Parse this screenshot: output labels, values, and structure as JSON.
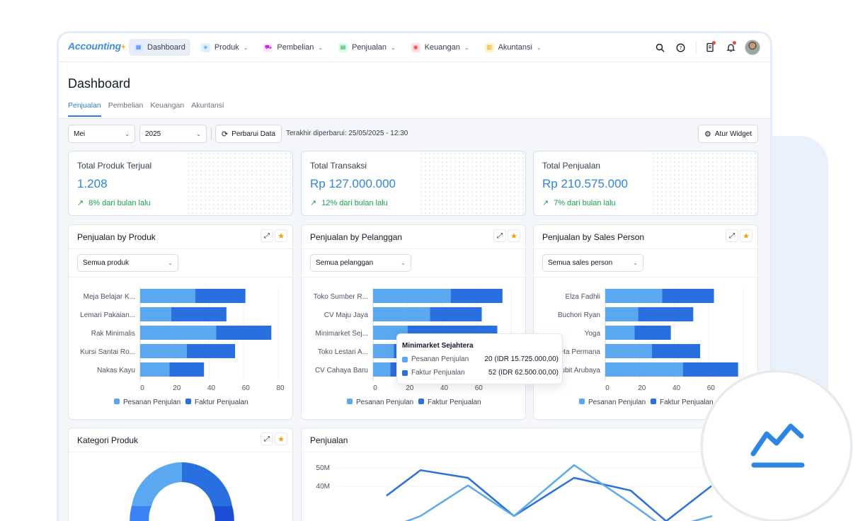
{
  "app": {
    "logo": "Accounting",
    "logo_plus": "+"
  },
  "nav": {
    "items": [
      {
        "label": "Dashboard",
        "icon": "dashboard-icon",
        "color": "#3b82f6",
        "active": true
      },
      {
        "label": "Produk",
        "icon": "box-icon",
        "color": "#60a5fa",
        "active": false
      },
      {
        "label": "Pembelian",
        "icon": "cart-icon",
        "color": "#c026d3",
        "active": false
      },
      {
        "label": "Penjualan",
        "icon": "clipboard-icon",
        "color": "#16a34a",
        "active": false
      },
      {
        "label": "Keuangan",
        "icon": "money-icon",
        "color": "#ef4444",
        "active": false
      },
      {
        "label": "Akuntansi",
        "icon": "ledger-icon",
        "color": "#f59e0b",
        "active": false
      }
    ]
  },
  "header": {
    "title": "Dashboard"
  },
  "tabs": [
    {
      "label": "Penjualan",
      "active": true
    },
    {
      "label": "Pembelian",
      "active": false
    },
    {
      "label": "Keuangan",
      "active": false
    },
    {
      "label": "Akuntansi",
      "active": false
    }
  ],
  "toolbar": {
    "month": "Mei",
    "year": "2025",
    "refresh_label": "Perbarui Data",
    "last_update": "Terakhir diperbarui: 25/05/2025 - 12:30",
    "widget_label": "Atur Widget"
  },
  "kpis": [
    {
      "label": "Total Produk Terjual",
      "value": "1.208",
      "trend": "8% dari bulan lalu"
    },
    {
      "label": "Total Transaksi",
      "value": "Rp 127.000.000",
      "trend": "12% dari bulan lalu"
    },
    {
      "label": "Total Penjualan",
      "value": "Rp 210.575.000",
      "trend": "7% dari bulan lalu"
    }
  ],
  "colors": {
    "pesanan": "#5aa9f0",
    "faktur": "#2a6fe0",
    "accent": "#2f7fd8",
    "trend": "#16a34a"
  },
  "cards": {
    "produk": {
      "title": "Penjualan by Produk",
      "filter": "Semua produk"
    },
    "pelanggan": {
      "title": "Penjualan by Pelanggan",
      "filter": "Semua pelanggan"
    },
    "sales": {
      "title": "Penjualan by Sales Person",
      "filter": "Semua sales person"
    },
    "kategori": {
      "title": "Kategori Produk"
    },
    "penjualan": {
      "title": "Penjualan"
    }
  },
  "tooltip": {
    "title": "Minimarket Sejahtera",
    "rows": [
      {
        "label": "Pesanan Penjulan",
        "value": "20 (IDR 15.725.000,00)"
      },
      {
        "label": "Faktur Penjualan",
        "value": "52 (IDR 62.500.00,00)"
      }
    ]
  },
  "chart_data": [
    {
      "type": "bar",
      "orientation": "horizontal",
      "stacked": true,
      "title": "Penjualan by Produk",
      "categories": [
        "Meja Belajar K...",
        "Lemari Pakaian...",
        "Rak Minimalis",
        "Kursi Santai Ro...",
        "Nakas Kayu"
      ],
      "series": [
        {
          "name": "Pesanan Penjulan",
          "values": [
            32,
            18,
            44,
            27,
            17
          ]
        },
        {
          "name": "Faktur Penjualan",
          "values": [
            29,
            32,
            32,
            28,
            20
          ]
        }
      ],
      "xlim": [
        0,
        80
      ],
      "xticks": [
        "0",
        "20",
        "40",
        "60",
        "80"
      ],
      "legend": "bottom"
    },
    {
      "type": "bar",
      "orientation": "horizontal",
      "stacked": true,
      "title": "Penjualan by Pelanggan",
      "categories": [
        "Toko Sumber R...",
        "CV Maju Jaya",
        "Minimarket Sej...",
        "Toko Lestari A...",
        "CV Cahaya Baru"
      ],
      "series": [
        {
          "name": "Pesanan Penjulan",
          "values": [
            45,
            33,
            20,
            12,
            10
          ]
        },
        {
          "name": "Faktur Penjualan",
          "values": [
            30,
            30,
            52,
            35,
            30
          ]
        }
      ],
      "xlim": [
        0,
        80
      ],
      "xticks": [
        "0",
        "20",
        "40",
        "60"
      ],
      "legend": "bottom"
    },
    {
      "type": "bar",
      "orientation": "horizontal",
      "stacked": true,
      "title": "Penjualan by Sales Person",
      "categories": [
        "Elza Fadhli",
        "Buchori Ryan",
        "Yoga",
        "eta Permana",
        "ubit Arubaya"
      ],
      "series": [
        {
          "name": "Pesanan Penjulan",
          "values": [
            33,
            19,
            17,
            27,
            45
          ]
        },
        {
          "name": "Faktur Penjualan",
          "values": [
            30,
            32,
            21,
            28,
            32
          ]
        }
      ],
      "xlim": [
        0,
        80
      ],
      "xticks": [
        "0",
        "20",
        "40",
        "60"
      ],
      "legend": "bottom"
    },
    {
      "type": "line",
      "title": "Penjualan",
      "yticks": [
        "50M",
        "40M"
      ],
      "series": [
        {
          "values": [
            38,
            48,
            45,
            30,
            45,
            40,
            28,
            42
          ]
        },
        {
          "values": [
            25,
            30,
            42,
            30,
            50,
            35,
            25,
            30
          ]
        }
      ]
    }
  ]
}
